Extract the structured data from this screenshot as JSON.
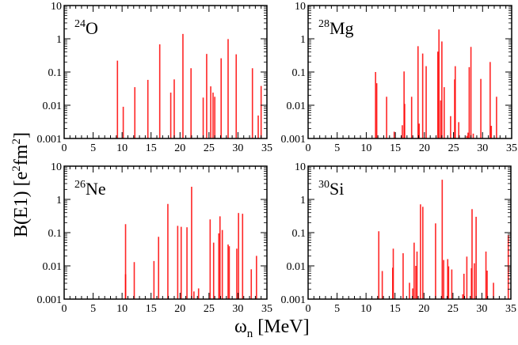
{
  "chart_data": [
    {
      "type": "bar",
      "label": "O",
      "mass": "24",
      "xlim": [
        0,
        35
      ],
      "ylim": [
        0.001,
        10
      ],
      "yscale": "log",
      "xticks": [
        "0",
        "5",
        "10",
        "15",
        "20",
        "25",
        "30",
        "35"
      ],
      "yticks": [
        "10",
        "1",
        "0.1",
        "0.01",
        "0.001"
      ],
      "x": [
        9.2,
        10.2,
        12.2,
        14.45,
        16.5,
        18.4,
        19.0,
        20.5,
        21.9,
        24.0,
        24.6,
        25.3,
        25.7,
        26.0,
        27.1,
        28.3,
        29.7,
        32.5,
        33.5,
        34.0
      ],
      "y": [
        0.22,
        0.009,
        0.035,
        0.058,
        0.68,
        0.024,
        0.06,
        1.4,
        0.13,
        0.017,
        0.35,
        0.037,
        0.024,
        0.018,
        0.26,
        0.98,
        0.34,
        0.13,
        0.0049,
        0.038
      ]
    },
    {
      "type": "bar",
      "label": "Mg",
      "mass": "28",
      "xlim": [
        0,
        35
      ],
      "ylim": [
        0.001,
        10
      ],
      "yscale": "log",
      "xticks": [
        "0",
        "5",
        "10",
        "15",
        "20",
        "25",
        "30",
        "35"
      ],
      "yticks": [
        "10",
        "1",
        "0.1",
        "0.01",
        "0.001"
      ],
      "x": [
        11.6,
        11.8,
        13.5,
        14.8,
        16.2,
        16.5,
        16.6,
        17.8,
        18.9,
        19.1,
        19.7,
        20.3,
        22.3,
        22.5,
        22.8,
        23.0,
        23.4,
        24.5,
        25.2,
        25.3,
        25.9,
        27.3,
        27.5,
        27.7,
        28.0,
        28.4,
        29.7,
        31.3,
        31.5,
        32.4
      ],
      "y": [
        0.1,
        0.046,
        0.018,
        0.0016,
        0.0025,
        0.104,
        0.011,
        0.018,
        0.6,
        0.0028,
        0.36,
        0.15,
        0.41,
        1.9,
        0.014,
        0.83,
        0.035,
        0.0047,
        0.06,
        0.15,
        0.0031,
        0.0012,
        0.0015,
        0.14,
        0.57,
        0.0014,
        0.062,
        0.2,
        0.0024,
        0.018
      ]
    },
    {
      "type": "bar",
      "label": "Ne",
      "mass": "26",
      "xlim": [
        0,
        35
      ],
      "ylim": [
        0.001,
        10
      ],
      "yscale": "log",
      "xticks": [
        "0",
        "5",
        "10",
        "15",
        "20",
        "25",
        "30",
        "35"
      ],
      "yticks": [
        "10",
        "1",
        "0.1",
        "0.01",
        "0.001"
      ],
      "x": [
        10.6,
        10.6,
        12.1,
        15.5,
        16.3,
        17.9,
        19.6,
        20.2,
        21.2,
        22.0,
        22.4,
        23.2,
        25.2,
        25.8,
        26.7,
        26.9,
        27.3,
        28.3,
        28.5,
        29.8,
        30.1,
        30.8,
        32.3,
        33.2
      ],
      "y": [
        0.18,
        0.0056,
        0.013,
        0.014,
        0.075,
        0.73,
        0.16,
        0.15,
        0.145,
        2.4,
        0.0017,
        0.0021,
        0.25,
        0.05,
        0.095,
        0.31,
        0.12,
        0.044,
        0.039,
        0.033,
        0.39,
        0.37,
        0.0079,
        0.02
      ]
    },
    {
      "type": "bar",
      "label": "Si",
      "mass": "30",
      "xlim": [
        0,
        35
      ],
      "ylim": [
        0.001,
        10
      ],
      "yscale": "log",
      "xticks": [
        "0",
        "5",
        "10",
        "15",
        "20",
        "25",
        "30",
        "35"
      ],
      "yticks": [
        "10",
        "1",
        "0.1",
        "0.01",
        "0.001"
      ],
      "x": [
        12.2,
        12.8,
        14.6,
        14.7,
        16.4,
        17.5,
        18.05,
        18.3,
        18.6,
        18.8,
        19.4,
        19.8,
        22.0,
        23.15,
        23.4,
        24.1,
        24.25,
        24.8,
        26.7,
        26.9,
        27.4,
        28.2,
        28.3,
        28.7,
        29.0,
        30.7,
        30.9,
        32.0,
        34.55
      ],
      "y": [
        0.11,
        0.007,
        0.0088,
        0.033,
        0.024,
        0.0031,
        0.0021,
        0.05,
        0.01,
        0.027,
        0.71,
        0.6,
        0.19,
        3.9,
        0.015,
        0.016,
        0.0097,
        0.0078,
        0.0014,
        0.0058,
        0.019,
        0.0085,
        0.51,
        0.012,
        0.3,
        0.027,
        0.0072,
        0.0031,
        0.084
      ]
    }
  ],
  "axes": {
    "ylabel": "B(E1) [e",
    "ylabel_sup1": "2",
    "ylabel_mid": "fm",
    "ylabel_sup2": "2",
    "ylabel_end": "]",
    "xlabel_symbol": "ω",
    "xlabel_sub": "n",
    "xlabel_unit": " [MeV]"
  },
  "colors": {
    "bar": "#ff0000",
    "axis": "#000000"
  }
}
